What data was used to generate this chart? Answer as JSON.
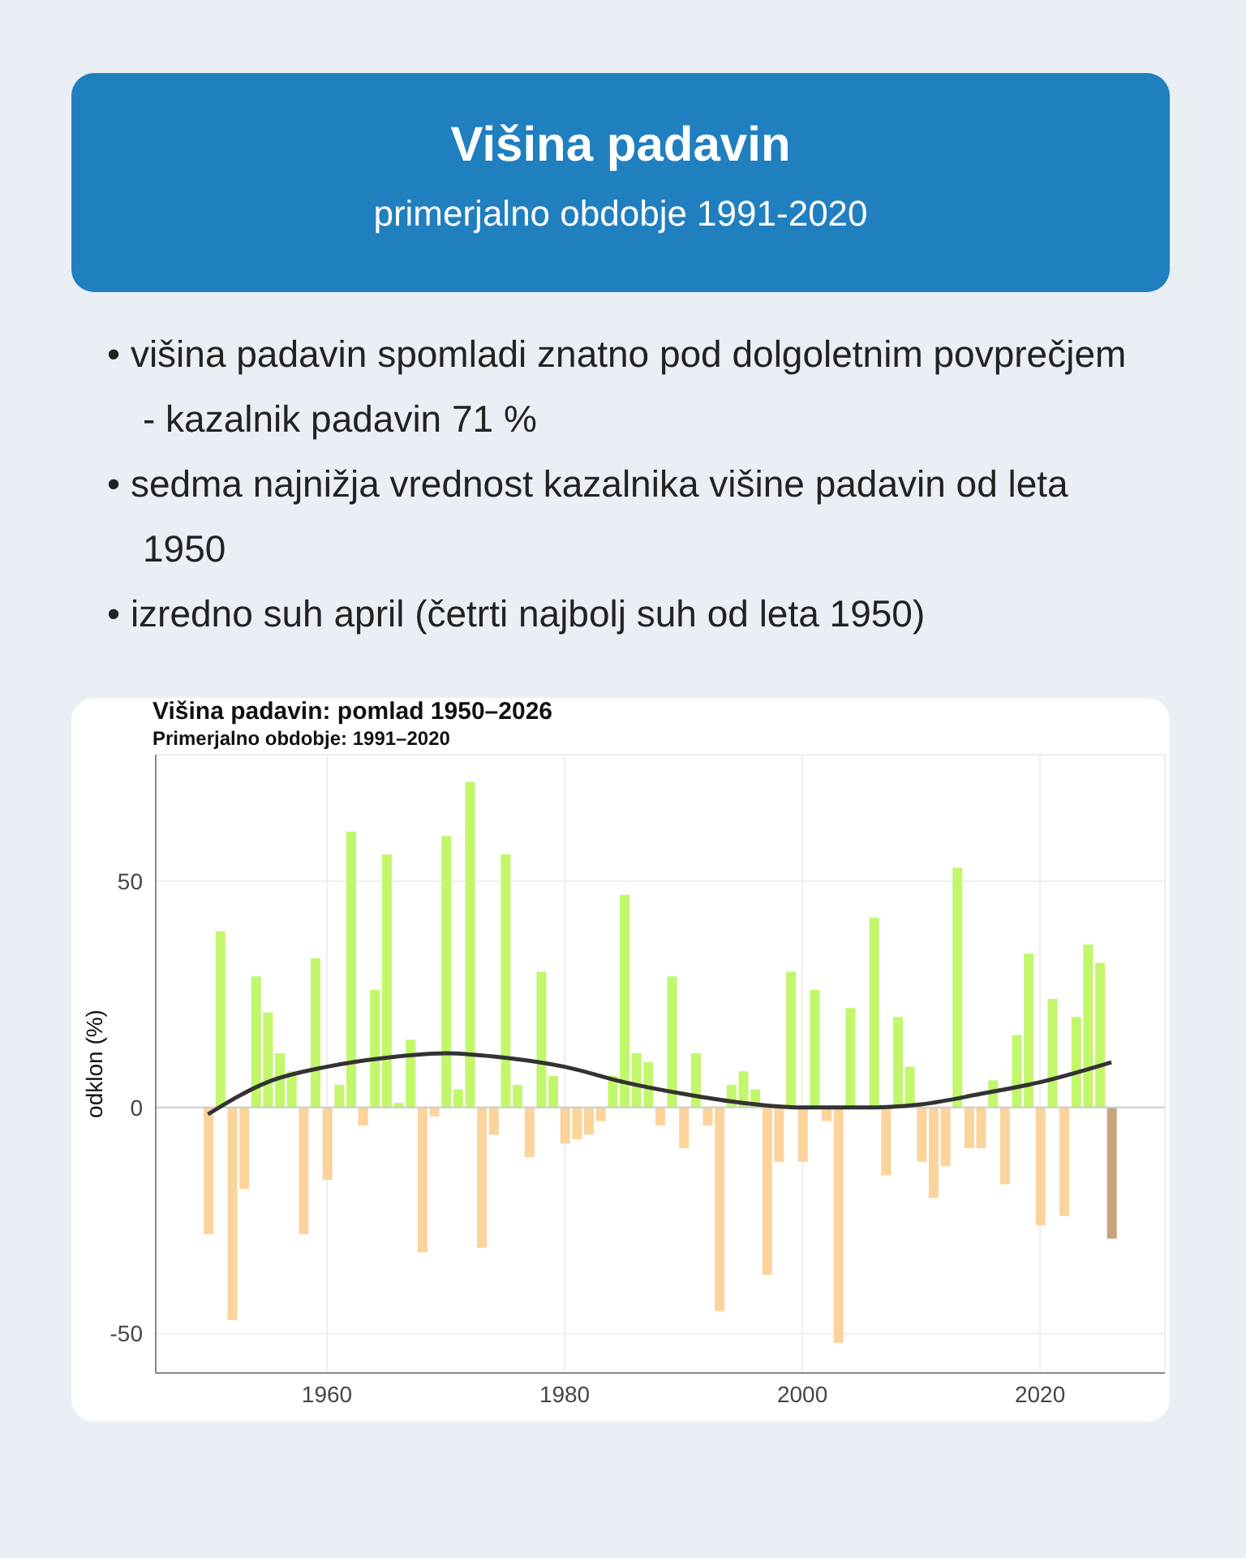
{
  "chart_data": {
    "type": "bar",
    "title": "Višina padavin: pomlad 1950–2026",
    "subtitle": "Primerjalno obdobje: 1991–2020",
    "ylabel": "odklon (%)",
    "annotations": [
      "Višina padavin",
      "primerjalno obdobje 1991-2020",
      "• višina padavin spomladi znatno pod dolgoletnim povprečjem - kazalnik padavin 71 %",
      "• sedma najnižja vrednost kazalnika višine padavin od leta 1950",
      "• izredno suh april (četrti najbolj suh od leta 1950)"
    ],
    "x": [
      1950,
      1951,
      1952,
      1953,
      1954,
      1955,
      1956,
      1957,
      1958,
      1959,
      1960,
      1961,
      1962,
      1963,
      1964,
      1965,
      1966,
      1967,
      1968,
      1969,
      1970,
      1971,
      1972,
      1973,
      1974,
      1975,
      1976,
      1977,
      1978,
      1979,
      1980,
      1981,
      1982,
      1983,
      1984,
      1985,
      1986,
      1987,
      1988,
      1989,
      1990,
      1991,
      1992,
      1993,
      1994,
      1995,
      1996,
      1997,
      1998,
      1999,
      2000,
      2001,
      2002,
      2003,
      2004,
      2005,
      2006,
      2007,
      2008,
      2009,
      2010,
      2011,
      2012,
      2013,
      2014,
      2015,
      2016,
      2017,
      2018,
      2019,
      2020,
      2021,
      2022,
      2023,
      2024,
      2025,
      2026
    ],
    "series": [
      {
        "values": [
          -28,
          39,
          -47,
          -18,
          29,
          21,
          12,
          8,
          -28,
          33,
          -16,
          5,
          61,
          -4,
          26,
          56,
          1,
          15,
          -32,
          -2,
          60,
          4,
          72,
          -31,
          -6,
          56,
          5,
          -11,
          30,
          7,
          -8,
          -7,
          -6,
          -3,
          7,
          47,
          12,
          10,
          -4,
          29,
          -9,
          12,
          -4,
          -45,
          5,
          8,
          4,
          -37,
          -12,
          30,
          -12,
          26,
          -3,
          -52,
          22,
          0,
          42,
          -15,
          20,
          9,
          -12,
          -20,
          -13,
          53,
          -9,
          -9,
          6,
          -17,
          16,
          34,
          -26,
          24,
          -24,
          20,
          36,
          32,
          -29
        ],
        "colors": [
          "#fbd39b",
          "#c2f76c",
          "#fbd39b",
          "#fbd39b",
          "#c2f76c",
          "#c2f76c",
          "#c2f76c",
          "#c2f76c",
          "#fbd39b",
          "#c2f76c",
          "#fbd39b",
          "#c2f76c",
          "#c2f76c",
          "#fbd39b",
          "#c2f76c",
          "#c2f76c",
          "#c2f76c",
          "#c2f76c",
          "#fbd39b",
          "#fbd39b",
          "#c2f76c",
          "#c2f76c",
          "#c2f76c",
          "#fbd39b",
          "#fbd39b",
          "#c2f76c",
          "#c2f76c",
          "#fbd39b",
          "#c2f76c",
          "#c2f76c",
          "#fbd39b",
          "#fbd39b",
          "#fbd39b",
          "#fbd39b",
          "#c2f76c",
          "#c2f76c",
          "#c2f76c",
          "#c2f76c",
          "#fbd39b",
          "#c2f76c",
          "#fbd39b",
          "#c2f76c",
          "#fbd39b",
          "#fbd39b",
          "#c2f76c",
          "#c2f76c",
          "#c2f76c",
          "#fbd39b",
          "#fbd39b",
          "#c2f76c",
          "#fbd39b",
          "#c2f76c",
          "#fbd39b",
          "#fbd39b",
          "#c2f76c",
          "#c2f76c",
          "#c2f76c",
          "#fbd39b",
          "#c2f76c",
          "#c2f76c",
          "#fbd39b",
          "#fbd39b",
          "#fbd39b",
          "#c2f76c",
          "#fbd39b",
          "#fbd39b",
          "#c2f76c",
          "#fbd39b",
          "#c2f76c",
          "#c2f76c",
          "#fbd39b",
          "#c2f76c",
          "#fbd39b",
          "#c2f76c",
          "#c2f76c",
          "#c2f76c",
          "#c8a47c"
        ]
      },
      {
        "type": "line",
        "color": "#333333",
        "x": [
          1950,
          1955,
          1960,
          1965,
          1970,
          1975,
          1980,
          1985,
          1990,
          1995,
          2000,
          2005,
          2010,
          2015,
          2020,
          2026
        ],
        "values": [
          -1.5,
          5.6,
          9,
          11,
          12,
          11,
          9,
          5.6,
          3,
          1,
          0,
          0,
          0.7,
          3,
          5.6,
          10
        ]
      }
    ],
    "xlim": [
      1945.6,
      2030.5
    ],
    "xticks": [
      1960,
      1980,
      2000,
      2020
    ],
    "ylim": [
      -58.7,
      78
    ],
    "yticks": [
      -50,
      0,
      50
    ],
    "grid": true,
    "ref_lines": [
      {
        "axis": "y",
        "value": 0,
        "color": "#cccccc"
      }
    ]
  }
}
